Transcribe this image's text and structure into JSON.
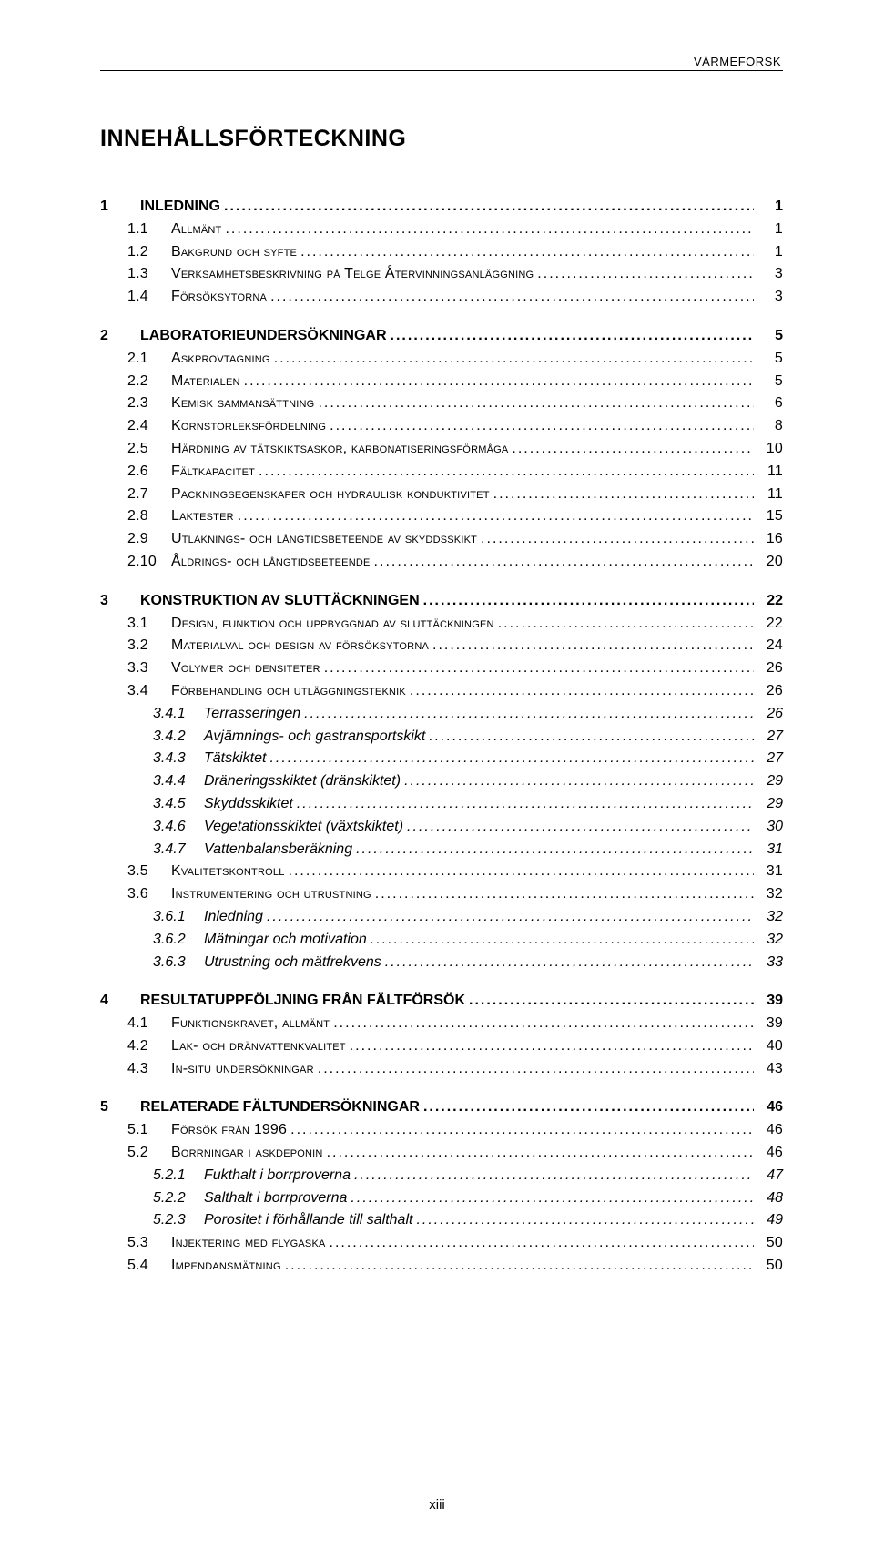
{
  "header": "VÄRMEFORSK",
  "title": "INNEHÅLLSFÖRTECKNING",
  "page_footer": "xiii",
  "toc": [
    {
      "level": 1,
      "num": "1",
      "label": "INLEDNING",
      "page": "1"
    },
    {
      "level": 2,
      "num": "1.1",
      "label": "Allmänt",
      "page": "1"
    },
    {
      "level": 2,
      "num": "1.2",
      "label": "Bakgrund och syfte",
      "page": "1"
    },
    {
      "level": 2,
      "num": "1.3",
      "label": "Verksamhetsbeskrivning på Telge Återvinningsanläggning",
      "page": "3"
    },
    {
      "level": 2,
      "num": "1.4",
      "label": "Försöksytorna",
      "page": "3"
    },
    {
      "level": 1,
      "num": "2",
      "label": "LABORATORIEUNDERSÖKNINGAR",
      "page": "5"
    },
    {
      "level": 2,
      "num": "2.1",
      "label": "Askprovtagning",
      "page": "5"
    },
    {
      "level": 2,
      "num": "2.2",
      "label": "Materialen",
      "page": "5"
    },
    {
      "level": 2,
      "num": "2.3",
      "label": "Kemisk sammansättning",
      "page": "6"
    },
    {
      "level": 2,
      "num": "2.4",
      "label": "Kornstorleksfördelning",
      "page": "8"
    },
    {
      "level": 2,
      "num": "2.5",
      "label": "Härdning av tätskiktsaskor, karbonatiseringsförmåga",
      "page": "10"
    },
    {
      "level": 2,
      "num": "2.6",
      "label": "Fältkapacitet",
      "page": "11"
    },
    {
      "level": 2,
      "num": "2.7",
      "label": "Packningsegenskaper och hydraulisk konduktivitet",
      "page": "11"
    },
    {
      "level": 2,
      "num": "2.8",
      "label": "Laktester",
      "page": "15"
    },
    {
      "level": 2,
      "num": "2.9",
      "label": "Utlaknings- och långtidsbeteende av skyddsskikt",
      "page": "16"
    },
    {
      "level": 2,
      "num": "2.10",
      "label": "Åldrings- och långtidsbeteende",
      "page": "20"
    },
    {
      "level": 1,
      "num": "3",
      "label": "KONSTRUKTION AV SLUTTÄCKNINGEN",
      "page": "22"
    },
    {
      "level": 2,
      "num": "3.1",
      "label": "Design, funktion och uppbyggnad av sluttäckningen",
      "page": "22"
    },
    {
      "level": 2,
      "num": "3.2",
      "label": "Materialval och design av försöksytorna",
      "page": "24"
    },
    {
      "level": 2,
      "num": "3.3",
      "label": "Volymer och densiteter",
      "page": "26"
    },
    {
      "level": 2,
      "num": "3.4",
      "label": "Förbehandling och utläggningsteknik",
      "page": "26"
    },
    {
      "level": 3,
      "num": "3.4.1",
      "label": "Terrasseringen",
      "page": "26"
    },
    {
      "level": 3,
      "num": "3.4.2",
      "label": "Avjämnings- och gastransportskikt",
      "page": "27"
    },
    {
      "level": 3,
      "num": "3.4.3",
      "label": "Tätskiktet",
      "page": "27"
    },
    {
      "level": 3,
      "num": "3.4.4",
      "label": "Dräneringsskiktet (dränskiktet)",
      "page": "29"
    },
    {
      "level": 3,
      "num": "3.4.5",
      "label": "Skyddsskiktet",
      "page": "29"
    },
    {
      "level": 3,
      "num": "3.4.6",
      "label": "Vegetationsskiktet (växtskiktet)",
      "page": "30"
    },
    {
      "level": 3,
      "num": "3.4.7",
      "label": "Vattenbalansberäkning",
      "page": "31"
    },
    {
      "level": 2,
      "num": "3.5",
      "label": "Kvalitetskontroll",
      "page": "31"
    },
    {
      "level": 2,
      "num": "3.6",
      "label": "Instrumentering och utrustning",
      "page": "32"
    },
    {
      "level": 3,
      "num": "3.6.1",
      "label": "Inledning",
      "page": "32"
    },
    {
      "level": 3,
      "num": "3.6.2",
      "label": "Mätningar och motivation",
      "page": "32"
    },
    {
      "level": 3,
      "num": "3.6.3",
      "label": "Utrustning och mätfrekvens",
      "page": "33"
    },
    {
      "level": 1,
      "num": "4",
      "label": "RESULTATUPPFÖLJNING FRÅN FÄLTFÖRSÖK",
      "page": "39"
    },
    {
      "level": 2,
      "num": "4.1",
      "label": "Funktionskravet, allmänt",
      "page": "39"
    },
    {
      "level": 2,
      "num": "4.2",
      "label": "Lak- och dränvattenkvalitet",
      "page": "40"
    },
    {
      "level": 2,
      "num": "4.3",
      "label": "In-situ undersökningar",
      "page": "43"
    },
    {
      "level": 1,
      "num": "5",
      "label": "RELATERADE FÄLTUNDERSÖKNINGAR",
      "page": "46"
    },
    {
      "level": 2,
      "num": "5.1",
      "label": "Försök från 1996",
      "page": "46"
    },
    {
      "level": 2,
      "num": "5.2",
      "label": "Borrningar i askdeponin",
      "page": "46"
    },
    {
      "level": 3,
      "num": "5.2.1",
      "label": "Fukthalt i borrproverna",
      "page": "47"
    },
    {
      "level": 3,
      "num": "5.2.2",
      "label": "Salthalt i borrproverna",
      "page": "48"
    },
    {
      "level": 3,
      "num": "5.2.3",
      "label": "Porositet i förhållande till salthalt",
      "page": "49"
    },
    {
      "level": 2,
      "num": "5.3",
      "label": "Injektering med flygaska",
      "page": "50"
    },
    {
      "level": 2,
      "num": "5.4",
      "label": "Impendansmätning",
      "page": "50"
    }
  ]
}
